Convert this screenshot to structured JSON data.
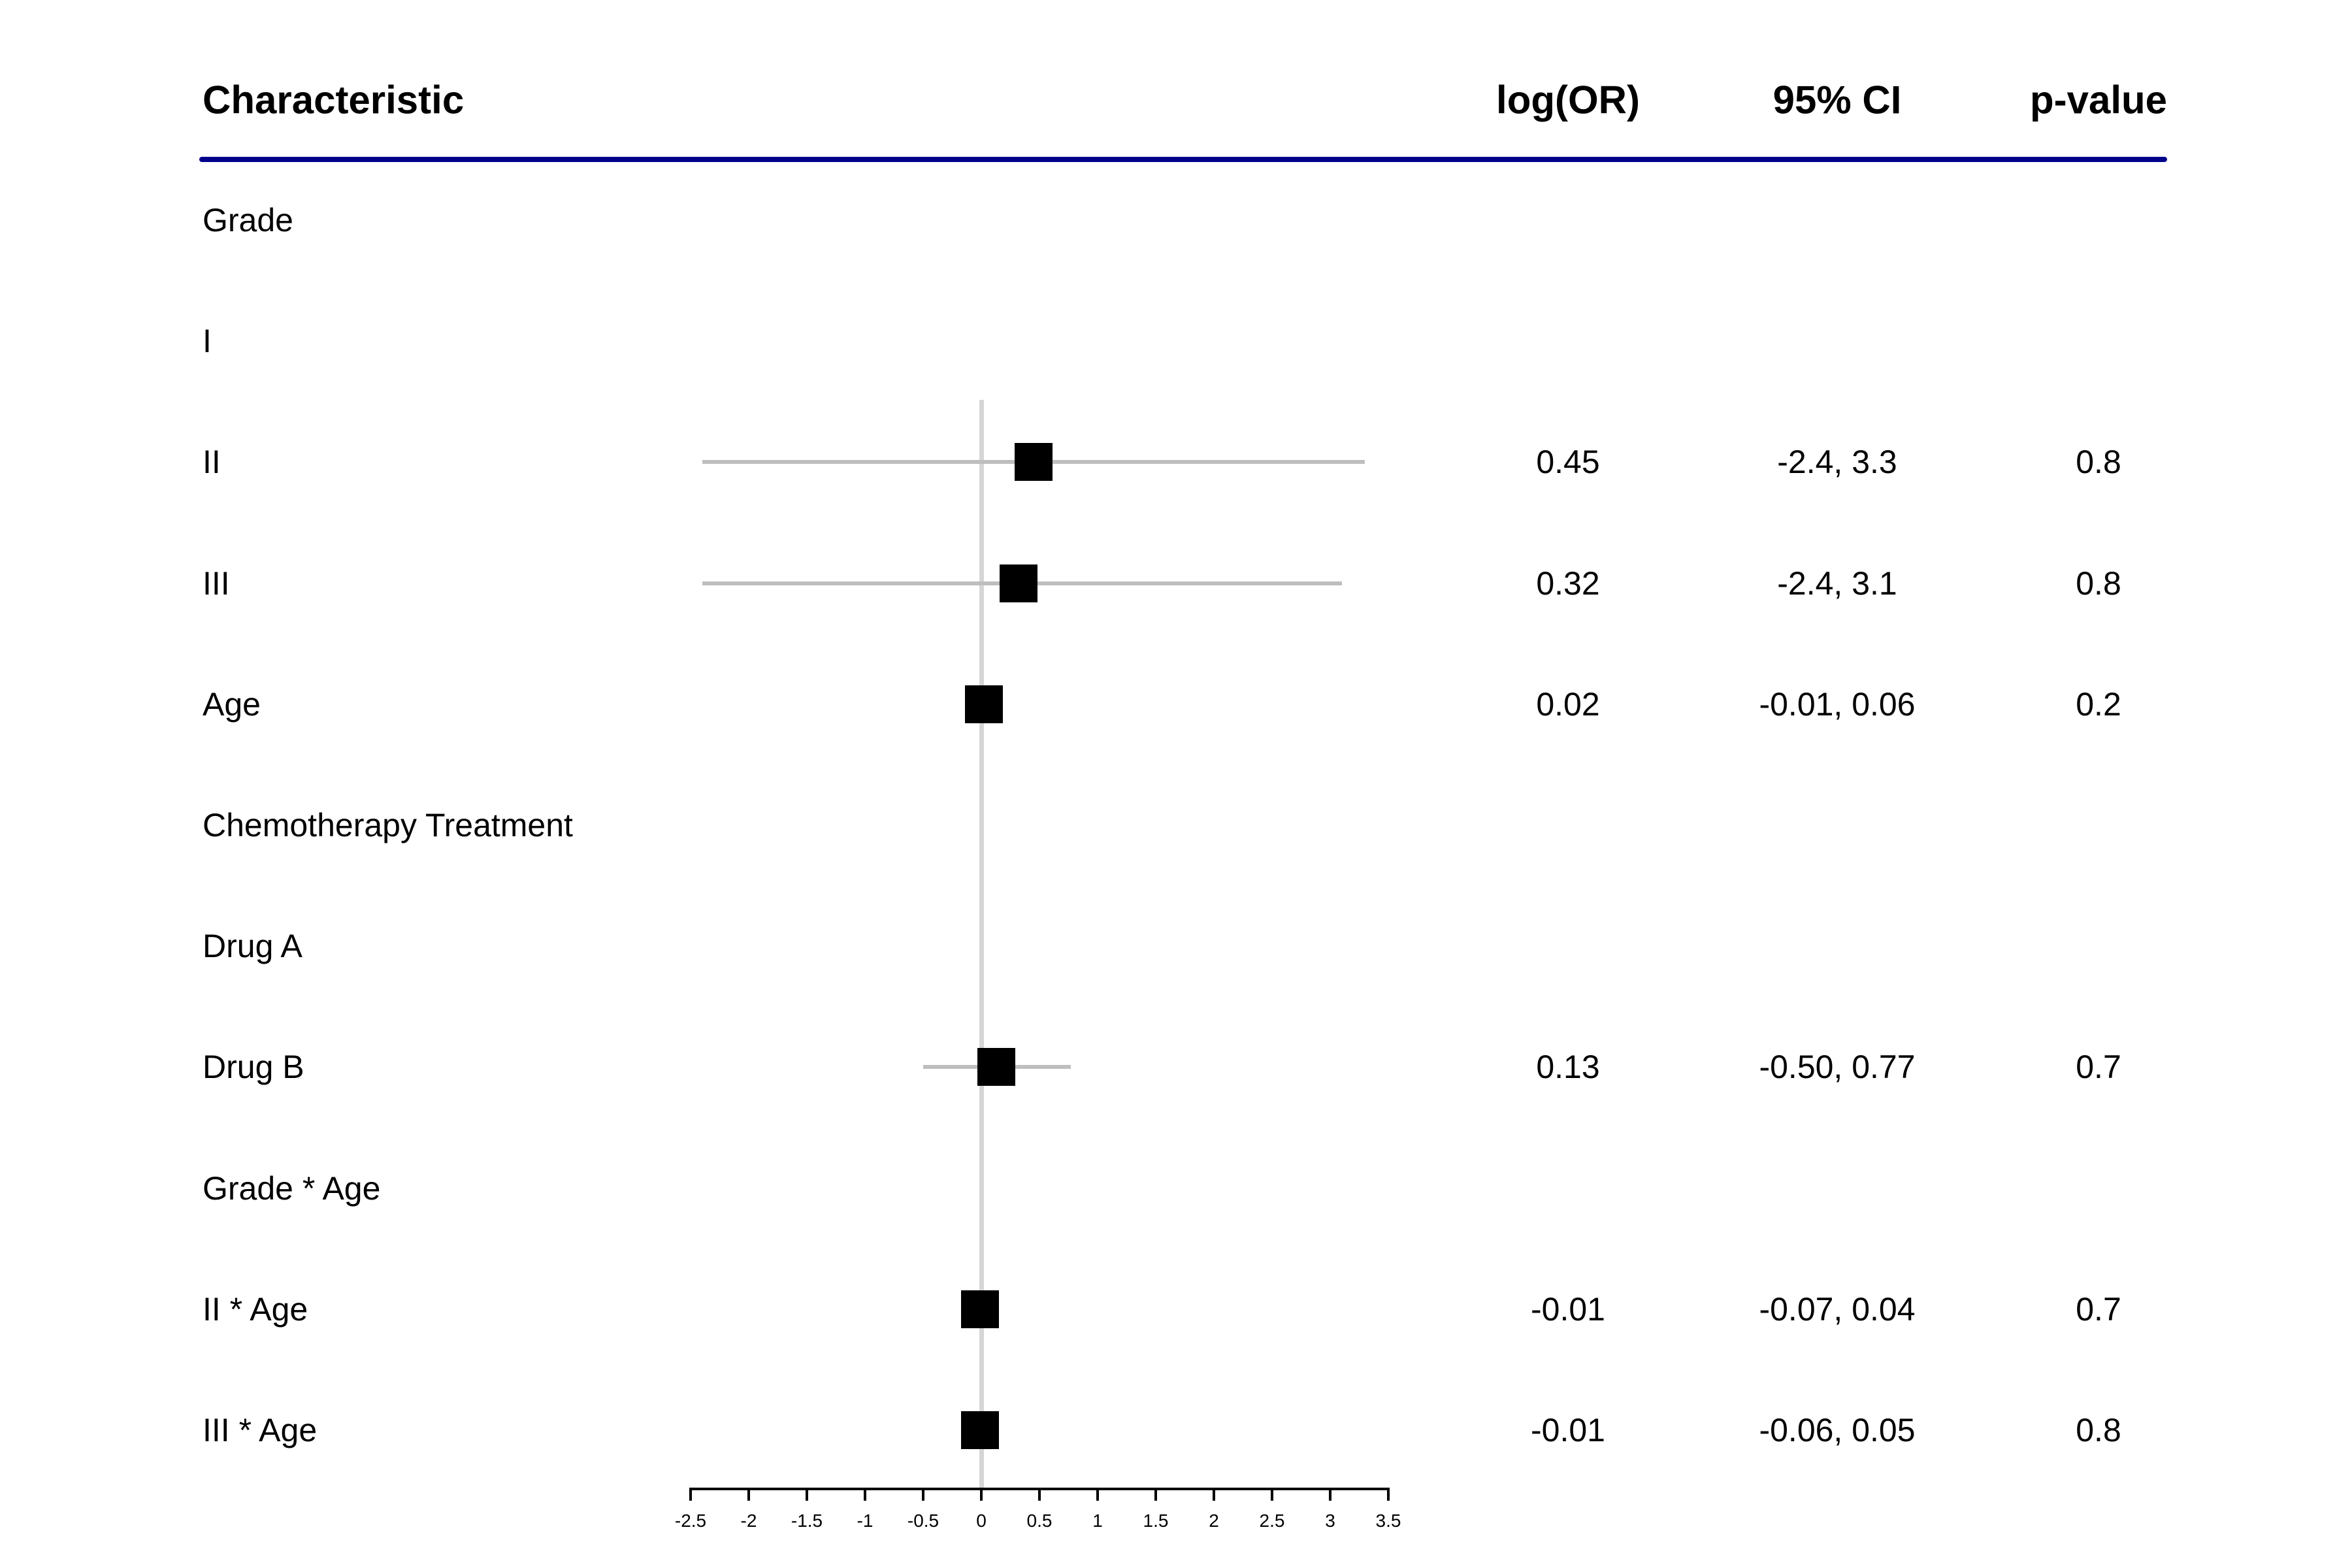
{
  "chart_data": {
    "type": "forest",
    "columns": {
      "characteristic": "Characteristic",
      "estimate": "log(OR)",
      "ci": "95% CI",
      "p": "p-value"
    },
    "rows": [
      {
        "label": "Grade"
      },
      {
        "label": "I"
      },
      {
        "label": "II",
        "estimate": 0.45,
        "ci_low": -2.4,
        "ci_high": 3.3,
        "estimate_text": "0.45",
        "ci_text": "-2.4, 3.3",
        "p_text": "0.8"
      },
      {
        "label": "III",
        "estimate": 0.32,
        "ci_low": -2.4,
        "ci_high": 3.1,
        "estimate_text": "0.32",
        "ci_text": "-2.4, 3.1",
        "p_text": "0.8"
      },
      {
        "label": "Age",
        "estimate": 0.02,
        "ci_low": -0.01,
        "ci_high": 0.06,
        "estimate_text": "0.02",
        "ci_text": "-0.01, 0.06",
        "p_text": "0.2"
      },
      {
        "label": "Chemotherapy Treatment"
      },
      {
        "label": "Drug A"
      },
      {
        "label": "Drug B",
        "estimate": 0.13,
        "ci_low": -0.5,
        "ci_high": 0.77,
        "estimate_text": "0.13",
        "ci_text": "-0.50, 0.77",
        "p_text": "0.7"
      },
      {
        "label": "Grade * Age"
      },
      {
        "label": "II * Age",
        "estimate": -0.01,
        "ci_low": -0.07,
        "ci_high": 0.04,
        "estimate_text": "-0.01",
        "ci_text": "-0.07, 0.04",
        "p_text": "0.7"
      },
      {
        "label": "III * Age",
        "estimate": -0.01,
        "ci_low": -0.06,
        "ci_high": 0.05,
        "estimate_text": "-0.01",
        "ci_text": "-0.06, 0.05",
        "p_text": "0.8"
      }
    ],
    "x_axis": {
      "range": [
        -2.5,
        3.5
      ],
      "ticks": [
        -2.5,
        -2,
        -1.5,
        -1,
        -0.5,
        0,
        0.5,
        1,
        1.5,
        2,
        2.5,
        3,
        3.5
      ],
      "tick_labels": [
        "-2.5",
        "-2",
        "-1.5",
        "-1",
        "-0.5",
        "0",
        "0.5",
        "1",
        "1.5",
        "2",
        "2.5",
        "3",
        "3.5"
      ],
      "reference_line": 0
    },
    "legend": null,
    "grid": false,
    "colors": {
      "header_rule": "#00008B",
      "whisker": "#BEBEBE",
      "reference_line": "#D6D6D6",
      "marker": "#000000",
      "text": "#000000"
    }
  }
}
